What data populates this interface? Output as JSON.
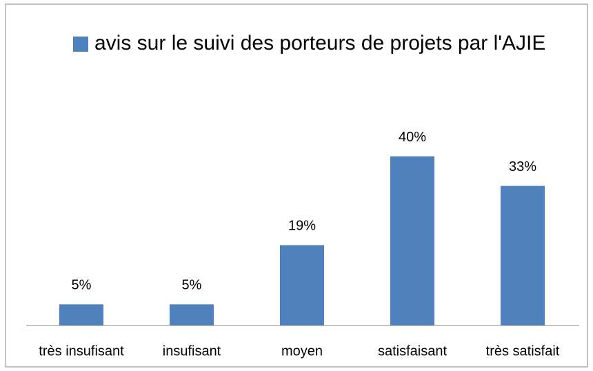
{
  "chart_data": {
    "type": "bar",
    "legend": "avis sur le suivi des porteurs de projets par l'AJIE",
    "categories": [
      "très insufisant",
      "insufisant",
      "moyen",
      "satisfaisant",
      "très satisfait"
    ],
    "values": [
      5,
      5,
      19,
      40,
      33
    ],
    "value_labels": [
      "5%",
      "5%",
      "19%",
      "40%",
      "33%"
    ],
    "color": "#4f81bd",
    "ylim": [
      0,
      45
    ]
  }
}
